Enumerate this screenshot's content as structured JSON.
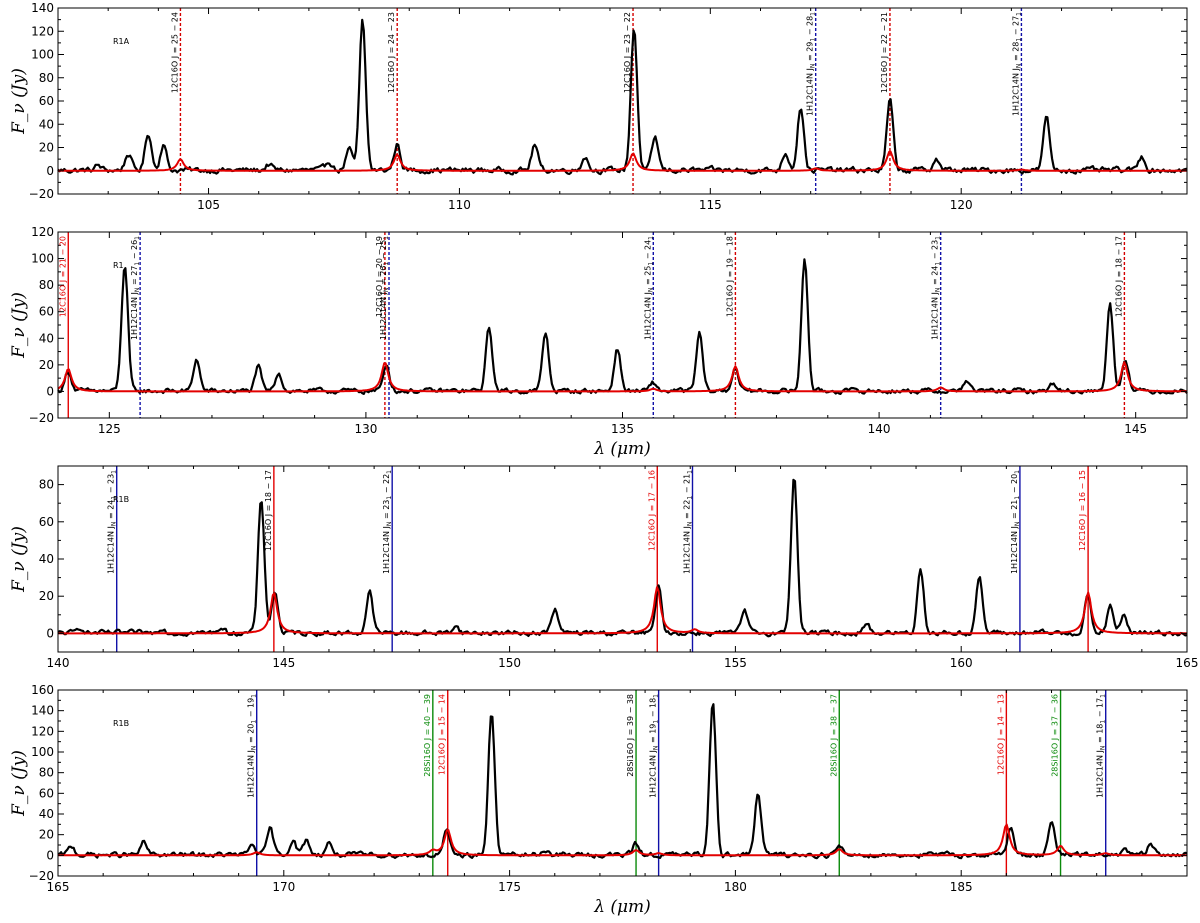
{
  "chart_data": [
    {
      "type": "line",
      "panel_label": "R1A",
      "xlabel": "",
      "ylabel": "F_ν (Jy)",
      "xlim": [
        102,
        124.5
      ],
      "ylim": [
        -20,
        140
      ],
      "xticks": [
        105,
        110,
        115,
        120
      ],
      "yticks": [
        -20,
        0,
        20,
        40,
        60,
        80,
        100,
        120,
        140
      ],
      "observed_peaks": [
        {
          "x": 102.8,
          "y": 4
        },
        {
          "x": 103.4,
          "y": 14
        },
        {
          "x": 103.8,
          "y": 32
        },
        {
          "x": 104.1,
          "y": 22
        },
        {
          "x": 106.2,
          "y": 5
        },
        {
          "x": 107.4,
          "y": 8
        },
        {
          "x": 107.8,
          "y": 18
        },
        {
          "x": 108.07,
          "y": 128
        },
        {
          "x": 108.76,
          "y": 22
        },
        {
          "x": 111.5,
          "y": 22
        },
        {
          "x": 112.5,
          "y": 12
        },
        {
          "x": 113.48,
          "y": 123
        },
        {
          "x": 113.9,
          "y": 28
        },
        {
          "x": 116.5,
          "y": 15
        },
        {
          "x": 116.8,
          "y": 55
        },
        {
          "x": 118.58,
          "y": 60
        },
        {
          "x": 119.5,
          "y": 10
        },
        {
          "x": 121.7,
          "y": 45
        },
        {
          "x": 123.6,
          "y": 12
        }
      ],
      "model_lines": [
        {
          "x": 104.44,
          "y": 10
        },
        {
          "x": 108.76,
          "y": 14
        },
        {
          "x": 113.46,
          "y": 15
        },
        {
          "x": 117.1,
          "y": 2
        },
        {
          "x": 118.58,
          "y": 17
        },
        {
          "x": 121.2,
          "y": 1
        }
      ],
      "vlines": [
        {
          "x": 104.44,
          "color": "#d40000",
          "style": "dashed",
          "label": "12C16O J = 25 − 24",
          "label_color": "#000000"
        },
        {
          "x": 108.76,
          "color": "#d40000",
          "style": "dashed",
          "label": "12C16O J = 24 − 23",
          "label_color": "#000000"
        },
        {
          "x": 113.46,
          "color": "#d40000",
          "style": "dashed",
          "label": "12C16O J = 23 − 22",
          "label_color": "#000000"
        },
        {
          "x": 117.1,
          "color": "#1010a8",
          "style": "dashed",
          "label": "1H12C14N J_N = 29_1 − 28_1",
          "label_color": "#000000"
        },
        {
          "x": 118.58,
          "color": "#d40000",
          "style": "dashed",
          "label": "12C16O J = 22 − 21",
          "label_color": "#000000"
        },
        {
          "x": 121.2,
          "color": "#1010a8",
          "style": "dashed",
          "label": "1H12C14N J_N = 28_1 − 27_1",
          "label_color": "#000000"
        }
      ]
    },
    {
      "type": "line",
      "panel_label": "R1",
      "xlabel": "λ (μm)",
      "ylabel": "F_ν (Jy)",
      "xlim": [
        124,
        146
      ],
      "ylim": [
        -20,
        120
      ],
      "xticks": [
        125,
        130,
        135,
        140,
        145
      ],
      "yticks": [
        -20,
        0,
        20,
        40,
        60,
        80,
        100,
        120
      ],
      "observed_peaks": [
        {
          "x": 124.2,
          "y": 15
        },
        {
          "x": 125.3,
          "y": 95
        },
        {
          "x": 126.7,
          "y": 24
        },
        {
          "x": 127.9,
          "y": 18
        },
        {
          "x": 128.3,
          "y": 14
        },
        {
          "x": 130.4,
          "y": 20
        },
        {
          "x": 132.4,
          "y": 48
        },
        {
          "x": 133.5,
          "y": 44
        },
        {
          "x": 134.9,
          "y": 32
        },
        {
          "x": 135.6,
          "y": 6
        },
        {
          "x": 136.5,
          "y": 43
        },
        {
          "x": 137.2,
          "y": 18
        },
        {
          "x": 138.55,
          "y": 100
        },
        {
          "x": 141.7,
          "y": 8
        },
        {
          "x": 143.4,
          "y": 6
        },
        {
          "x": 144.5,
          "y": 66
        },
        {
          "x": 144.8,
          "y": 25
        }
      ],
      "model_lines": [
        {
          "x": 124.2,
          "y": 17
        },
        {
          "x": 125.6,
          "y": 0
        },
        {
          "x": 130.37,
          "y": 22
        },
        {
          "x": 135.6,
          "y": 2
        },
        {
          "x": 137.2,
          "y": 19
        },
        {
          "x": 141.2,
          "y": 3
        },
        {
          "x": 144.78,
          "y": 22
        }
      ],
      "vlines": [
        {
          "x": 124.2,
          "color": "#e30000",
          "style": "solid",
          "label": "12C16O J = 21 − 20",
          "label_color": "#e30000"
        },
        {
          "x": 125.6,
          "color": "#1010a8",
          "style": "dashed",
          "label": "1H12C14N J_N = 27_1 − 26_1",
          "label_color": "#000000"
        },
        {
          "x": 130.37,
          "color": "#d40000",
          "style": "dashed",
          "label": "12C16O J = 20 − 19",
          "label_color": "#000000"
        },
        {
          "x": 130.45,
          "color": "#1010a8",
          "style": "dashed",
          "label": "1H12C14N J_N = 26_1 − 25_1",
          "label_color": "#000000"
        },
        {
          "x": 135.6,
          "color": "#1010a8",
          "style": "dashed",
          "label": "1H12C14N J_N = 25_1 − 24_1",
          "label_color": "#000000"
        },
        {
          "x": 137.2,
          "color": "#d40000",
          "style": "dashed",
          "label": "12C16O J = 19 − 18",
          "label_color": "#000000"
        },
        {
          "x": 141.2,
          "color": "#1010a8",
          "style": "dashed",
          "label": "1H12C14N J_N = 24_1 − 23_1",
          "label_color": "#000000"
        },
        {
          "x": 144.78,
          "color": "#d40000",
          "style": "dashed",
          "label": "12C16O J = 18 − 17",
          "label_color": "#000000"
        }
      ]
    },
    {
      "type": "line",
      "panel_label": "R1B",
      "xlabel": "",
      "ylabel": "F_ν (Jy)",
      "xlim": [
        140,
        165
      ],
      "ylim": [
        -10,
        90
      ],
      "xticks": [
        140,
        145,
        150,
        155,
        160,
        165
      ],
      "yticks": [
        0,
        20,
        40,
        60,
        80
      ],
      "observed_peaks": [
        {
          "x": 140.5,
          "y": 3
        },
        {
          "x": 142.3,
          "y": 3
        },
        {
          "x": 143.6,
          "y": 3
        },
        {
          "x": 144.5,
          "y": 72
        },
        {
          "x": 144.8,
          "y": 22
        },
        {
          "x": 146.9,
          "y": 22
        },
        {
          "x": 148.8,
          "y": 4
        },
        {
          "x": 151.0,
          "y": 13
        },
        {
          "x": 153.3,
          "y": 24
        },
        {
          "x": 155.2,
          "y": 12
        },
        {
          "x": 156.3,
          "y": 85
        },
        {
          "x": 157.9,
          "y": 5
        },
        {
          "x": 159.1,
          "y": 35
        },
        {
          "x": 160.4,
          "y": 30
        },
        {
          "x": 162.8,
          "y": 20
        },
        {
          "x": 163.3,
          "y": 14
        },
        {
          "x": 163.6,
          "y": 10
        }
      ],
      "model_lines": [
        {
          "x": 144.78,
          "y": 22
        },
        {
          "x": 153.27,
          "y": 25
        },
        {
          "x": 154.1,
          "y": 2
        },
        {
          "x": 162.81,
          "y": 22
        }
      ],
      "vlines": [
        {
          "x": 141.3,
          "color": "#1010a8",
          "style": "solid",
          "label": "1H12C14N J_N = 24_1 − 23_1",
          "label_color": "#000000"
        },
        {
          "x": 144.78,
          "color": "#e30000",
          "style": "solid",
          "label": "12C16O J = 18 − 17",
          "label_color": "#000000"
        },
        {
          "x": 147.4,
          "color": "#1010a8",
          "style": "solid",
          "label": "1H12C14N J_N = 23_1 − 22_1",
          "label_color": "#000000"
        },
        {
          "x": 153.27,
          "color": "#e30000",
          "style": "solid",
          "label": "12C16O J = 17 − 16",
          "label_color": "#e30000"
        },
        {
          "x": 154.05,
          "color": "#1010a8",
          "style": "solid",
          "label": "1H12C14N J_N = 22_1 − 21_1",
          "label_color": "#000000"
        },
        {
          "x": 161.3,
          "color": "#1010a8",
          "style": "solid",
          "label": "1H12C14N J_N = 21_1 − 20_1",
          "label_color": "#000000"
        },
        {
          "x": 162.81,
          "color": "#e30000",
          "style": "solid",
          "label": "12C16O J = 16 − 15",
          "label_color": "#e30000"
        }
      ]
    },
    {
      "type": "line",
      "panel_label": "R1B",
      "xlabel": "λ (μm)",
      "ylabel": "F_ν (Jy)",
      "xlim": [
        165,
        190
      ],
      "ylim": [
        -20,
        160
      ],
      "xticks": [
        165,
        170,
        175,
        180,
        185
      ],
      "yticks": [
        -20,
        0,
        20,
        40,
        60,
        80,
        100,
        120,
        140,
        160
      ],
      "observed_peaks": [
        {
          "x": 165.3,
          "y": 8
        },
        {
          "x": 166.9,
          "y": 12
        },
        {
          "x": 169.3,
          "y": 10
        },
        {
          "x": 169.7,
          "y": 25
        },
        {
          "x": 170.2,
          "y": 15
        },
        {
          "x": 170.5,
          "y": 14
        },
        {
          "x": 171.0,
          "y": 12
        },
        {
          "x": 173.6,
          "y": 22
        },
        {
          "x": 174.6,
          "y": 138
        },
        {
          "x": 175.8,
          "y": 5
        },
        {
          "x": 177.8,
          "y": 11
        },
        {
          "x": 179.5,
          "y": 150
        },
        {
          "x": 180.5,
          "y": 60
        },
        {
          "x": 182.3,
          "y": 8
        },
        {
          "x": 186.1,
          "y": 28
        },
        {
          "x": 187.0,
          "y": 30
        },
        {
          "x": 188.6,
          "y": 4
        },
        {
          "x": 189.2,
          "y": 10
        }
      ],
      "model_lines": [
        {
          "x": 169.4,
          "y": 3
        },
        {
          "x": 173.3,
          "y": 4
        },
        {
          "x": 173.63,
          "y": 25
        },
        {
          "x": 177.8,
          "y": 5
        },
        {
          "x": 178.3,
          "y": 2
        },
        {
          "x": 182.3,
          "y": 6
        },
        {
          "x": 186.0,
          "y": 30
        },
        {
          "x": 187.2,
          "y": 9
        },
        {
          "x": 188.2,
          "y": 2
        }
      ],
      "vlines": [
        {
          "x": 169.4,
          "color": "#1010a8",
          "style": "solid",
          "label": "1H12C14N J_N = 20_1 − 19_1",
          "label_color": "#000000"
        },
        {
          "x": 173.3,
          "color": "#0a8a0a",
          "style": "solid",
          "label": "28Si16O J = 40 − 39",
          "label_color": "#0a8a0a"
        },
        {
          "x": 173.63,
          "color": "#e30000",
          "style": "solid",
          "label": "12C16O J = 15 − 14",
          "label_color": "#e30000"
        },
        {
          "x": 177.8,
          "color": "#0a8a0a",
          "style": "solid",
          "label": "28Si16O J = 39 − 38",
          "label_color": "#000000"
        },
        {
          "x": 178.3,
          "color": "#1010a8",
          "style": "solid",
          "label": "1H12C14N J_N = 19_1 − 18_1",
          "label_color": "#000000"
        },
        {
          "x": 182.3,
          "color": "#0a8a0a",
          "style": "solid",
          "label": "28Si16O J = 38 − 37",
          "label_color": "#0a8a0a"
        },
        {
          "x": 186.0,
          "color": "#e30000",
          "style": "solid",
          "label": "12C16O J = 14 − 13",
          "label_color": "#e30000"
        },
        {
          "x": 187.2,
          "color": "#0a8a0a",
          "style": "solid",
          "label": "28Si16O J = 37 − 36",
          "label_color": "#0a8a0a"
        },
        {
          "x": 188.2,
          "color": "#1010a8",
          "style": "solid",
          "label": "1H12C14N J_N = 18_1 − 17_1",
          "label_color": "#000000"
        }
      ]
    }
  ]
}
